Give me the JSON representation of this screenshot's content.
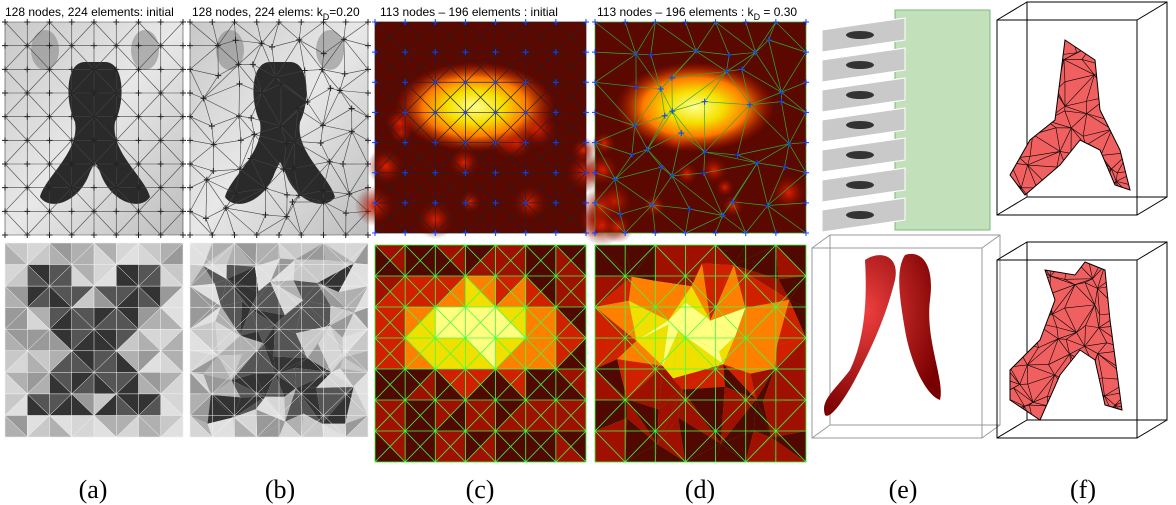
{
  "panels": [
    {
      "title": {
        "text": "128 nodes, 224 elements: initial"
      },
      "caption": "(a)"
    },
    {
      "title": {
        "text": "128 nodes, 224 elems: k",
        "sub": "D",
        "after": "=0.20"
      },
      "caption": "(b)"
    },
    {
      "title": {
        "text": "113 nodes – 196 elements : initial"
      },
      "caption": "(c)"
    },
    {
      "title": {
        "text": "113 nodes – 196 elements : k",
        "sub": "D",
        "after": " = 0.30"
      },
      "caption": "(d)"
    },
    {
      "caption": "(e)"
    },
    {
      "caption": "(f)"
    }
  ]
}
